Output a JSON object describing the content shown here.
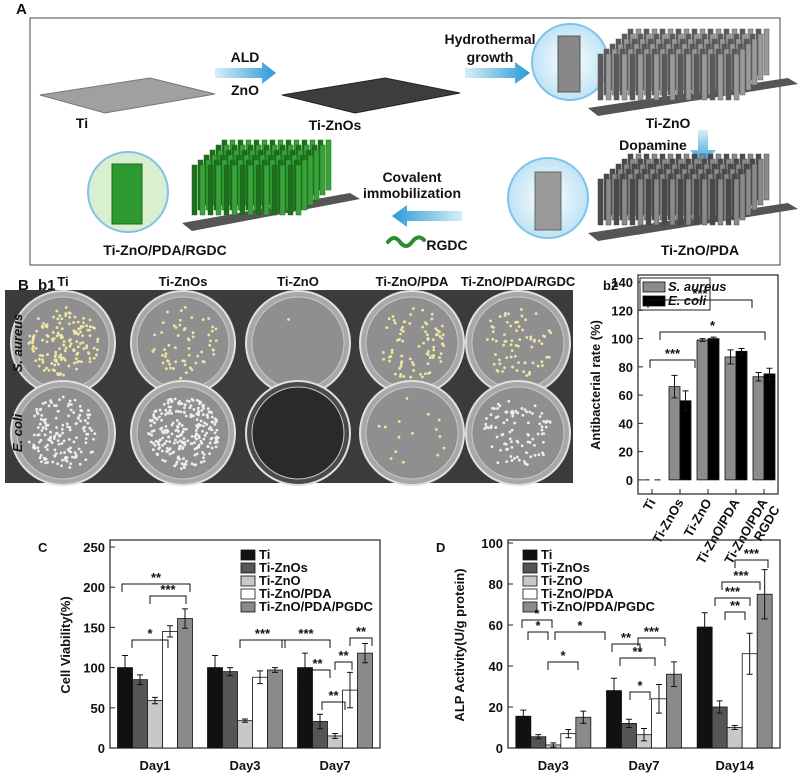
{
  "panel_a": {
    "label": "A",
    "ti": "Ti",
    "ald": "ALD",
    "zno": "ZnO",
    "ti_znos": "Ti-ZnOs",
    "hydrothermal": [
      "Hydrothermal",
      "growth"
    ],
    "ti_zno": "Ti-ZnO",
    "dopamine": "Dopamine",
    "ti_zno_pda": "Ti-ZnO/PDA",
    "covalent": [
      "Covalent",
      "immobilization"
    ],
    "rgdc": "RGDC",
    "ti_zno_pda_rgdc": "Ti-ZnO/PDA/RGDC"
  },
  "panel_b1": {
    "label": "B",
    "sublabel": "b1",
    "columns": [
      "Ti",
      "Ti-ZnOs",
      "Ti-ZnO",
      "Ti-ZnO/PDA",
      "Ti-ZnO/PDA/RGDC"
    ],
    "rows": [
      "S. aureus",
      "E. coli"
    ]
  },
  "chart_data": [
    {
      "type": "bar",
      "label": "b2",
      "ylabel": "Antibacterial rate (%)",
      "categories": [
        "Ti",
        "Ti-ZnOs",
        "Ti-ZnO",
        "Ti-ZnO/PDA",
        "Ti-ZnO/PDA RGDC"
      ],
      "series": [
        {
          "name": "S. aureus",
          "color": "#8c8c8c",
          "values": [
            0,
            66,
            99,
            87,
            73
          ],
          "errors": [
            0,
            8,
            1,
            5,
            3
          ]
        },
        {
          "name": "E. coli",
          "color": "#000000",
          "values": [
            0,
            56,
            100,
            91,
            75
          ],
          "errors": [
            0,
            7,
            1,
            2,
            4
          ]
        }
      ],
      "ylim": [
        -10,
        145
      ],
      "yticks": [
        0,
        20,
        40,
        60,
        80,
        100,
        120,
        140
      ],
      "legend": "upper left",
      "annotations": [
        "***",
        "*",
        "***"
      ]
    },
    {
      "type": "bar",
      "label": "C",
      "ylabel": "Cell Viability(%)",
      "categories": [
        "Day1",
        "Day3",
        "Day7"
      ],
      "series": [
        {
          "name": "Ti",
          "color": "#111111",
          "values": [
            100,
            100,
            100
          ],
          "errors": [
            15,
            15,
            18
          ]
        },
        {
          "name": "Ti-ZnOs",
          "color": "#555555",
          "values": [
            85,
            95,
            33
          ],
          "errors": [
            6,
            5,
            9
          ]
        },
        {
          "name": "Ti-ZnO",
          "color": "#c8c8c8",
          "values": [
            59,
            34,
            15
          ],
          "errors": [
            4,
            2,
            3
          ]
        },
        {
          "name": "Ti-ZnO/PDA",
          "color": "#ffffff",
          "values": [
            145,
            88,
            72
          ],
          "errors": [
            7,
            8,
            22
          ]
        },
        {
          "name": "Ti-ZnO/PDA/PGDC",
          "color": "#8a8a8a",
          "values": [
            161,
            97,
            118
          ],
          "errors": [
            12,
            3,
            12
          ]
        }
      ],
      "ylim": [
        0,
        250
      ],
      "yticks": [
        0,
        50,
        100,
        150,
        200,
        250
      ],
      "legend": "upper right",
      "annotations": [
        "**",
        "***",
        "*",
        "***",
        "***",
        "**",
        "**",
        "**",
        "**"
      ]
    },
    {
      "type": "bar",
      "label": "D",
      "ylabel": "ALP Activity(U/g protein)",
      "categories": [
        "Day3",
        "Day7",
        "Day14"
      ],
      "series": [
        {
          "name": "Ti",
          "color": "#111111",
          "values": [
            15.5,
            28,
            59
          ],
          "errors": [
            3,
            6,
            7
          ]
        },
        {
          "name": "Ti-ZnOs",
          "color": "#555555",
          "values": [
            5.5,
            12,
            20
          ],
          "errors": [
            1,
            2,
            3
          ]
        },
        {
          "name": "Ti-ZnO",
          "color": "#c8c8c8",
          "values": [
            1.5,
            6.5,
            10
          ],
          "errors": [
            1,
            3,
            1
          ]
        },
        {
          "name": "Ti-ZnO/PDA",
          "color": "#ffffff",
          "values": [
            7,
            24,
            46
          ],
          "errors": [
            2,
            7,
            10
          ]
        },
        {
          "name": "Ti-ZnO/PDA/PGDC",
          "color": "#8a8a8a",
          "values": [
            15,
            36,
            75
          ],
          "errors": [
            3,
            6,
            12
          ]
        }
      ],
      "ylim": [
        0,
        100
      ],
      "yticks": [
        0,
        20,
        40,
        60,
        80,
        100
      ],
      "legend": "upper left",
      "annotations": [
        "*",
        "*",
        "*",
        "*",
        "**",
        "**",
        "***",
        "*",
        "***",
        "***",
        "**",
        "***"
      ]
    }
  ]
}
